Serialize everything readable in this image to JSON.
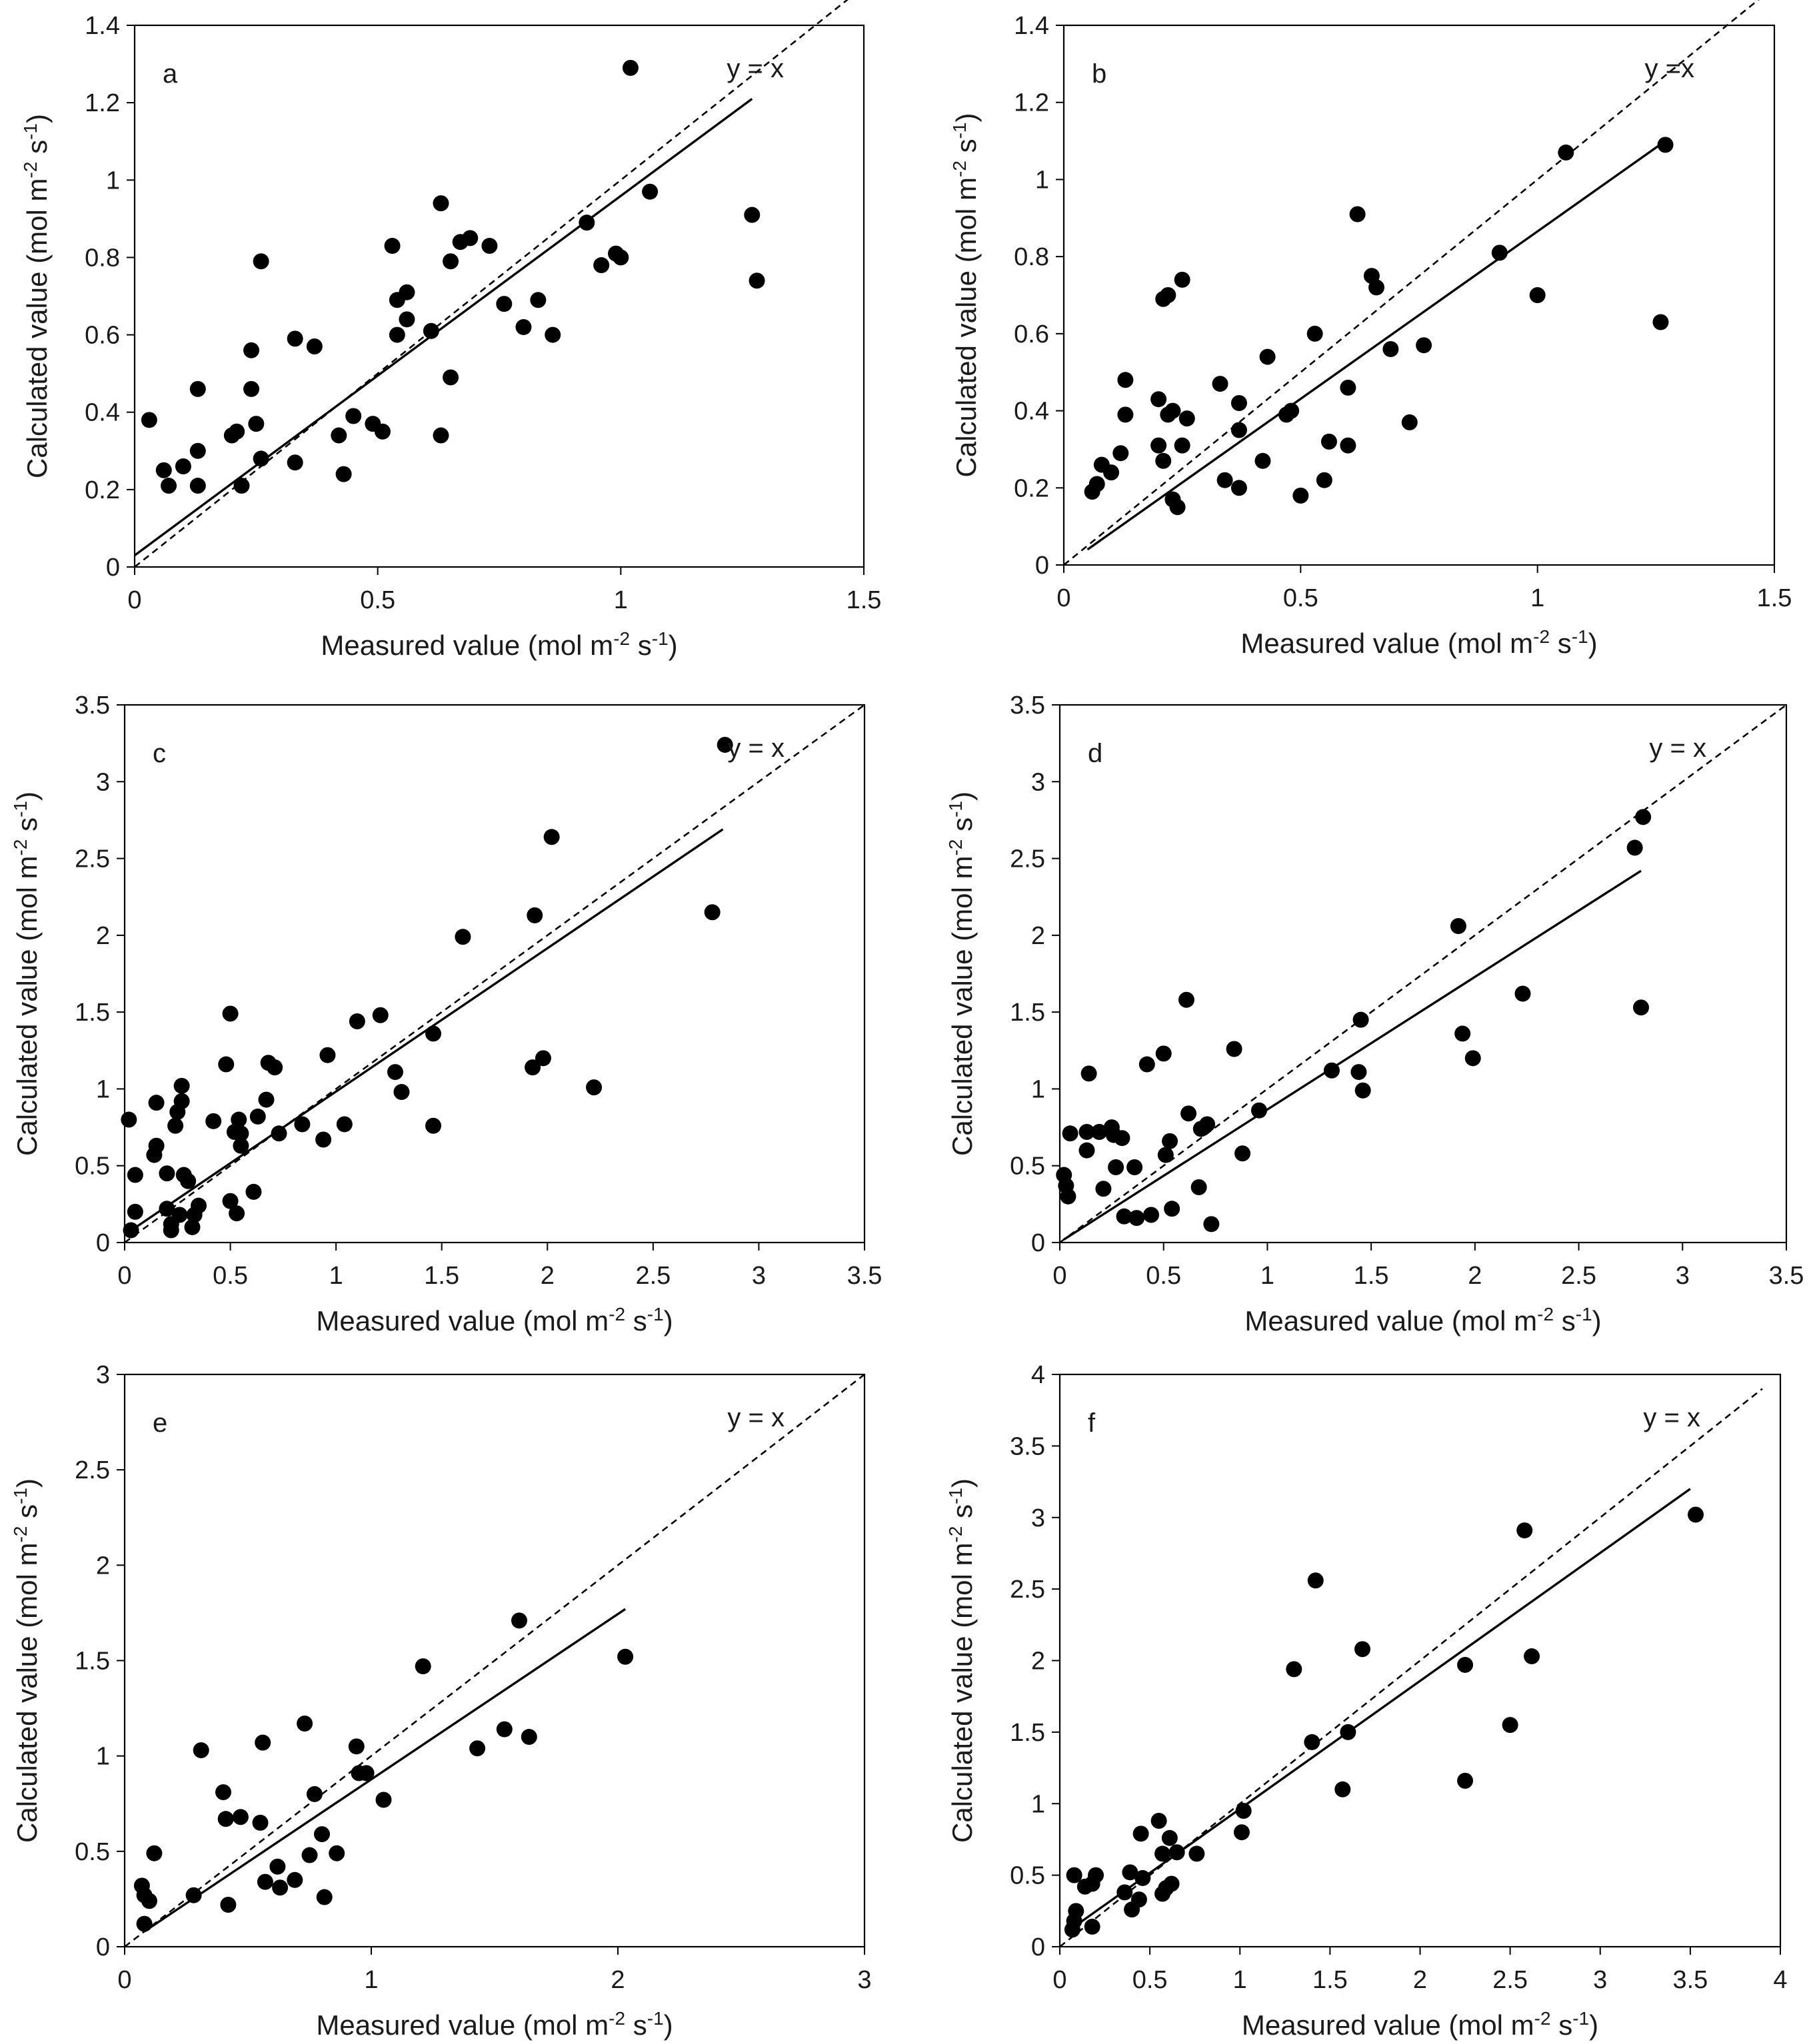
{
  "figure": {
    "xlabel_main": "Measured value (mol m",
    "xlabel_sup1": "-2",
    "xlabel_mid": " s",
    "xlabel_sup2": "-1",
    "xlabel_end": ")",
    "ylabel_main": "Calculated value (mol m",
    "ylabel_sup1": "-2",
    "ylabel_mid": " s",
    "ylabel_sup2": "-1",
    "ylabel_end": ")",
    "ink_color": "#000000"
  },
  "chart_data": [
    {
      "panel": "a",
      "type": "scatter",
      "ref_label": "y = x",
      "xlim": [
        0,
        1.5
      ],
      "ylim": [
        0,
        1.4
      ],
      "xticks": [
        0,
        0.5,
        1,
        1.5
      ],
      "xtick_labels": [
        "0",
        "0.5",
        "1",
        "1.5"
      ],
      "yticks": [
        0,
        0.2,
        0.4,
        0.6,
        0.8,
        1,
        1.2,
        1.4
      ],
      "ytick_labels": [
        "0",
        "0.2",
        "0.4",
        "0.6",
        "0.8",
        "1",
        "1.2",
        "1.4"
      ],
      "ref_line_end": 1.5,
      "fit_line": [
        [
          0,
          0.03
        ],
        [
          1.27,
          1.21
        ]
      ],
      "points": [
        [
          0.03,
          0.38
        ],
        [
          0.06,
          0.25
        ],
        [
          0.07,
          0.21
        ],
        [
          0.1,
          0.26
        ],
        [
          0.13,
          0.3
        ],
        [
          0.13,
          0.46
        ],
        [
          0.13,
          0.21
        ],
        [
          0.2,
          0.34
        ],
        [
          0.21,
          0.35
        ],
        [
          0.22,
          0.21
        ],
        [
          0.24,
          0.56
        ],
        [
          0.24,
          0.46
        ],
        [
          0.25,
          0.37
        ],
        [
          0.26,
          0.28
        ],
        [
          0.26,
          0.79
        ],
        [
          0.33,
          0.59
        ],
        [
          0.33,
          0.27
        ],
        [
          0.37,
          0.57
        ],
        [
          0.42,
          0.34
        ],
        [
          0.43,
          0.24
        ],
        [
          0.45,
          0.39
        ],
        [
          0.49,
          0.37
        ],
        [
          0.51,
          0.35
        ],
        [
          0.53,
          0.83
        ],
        [
          0.54,
          0.6
        ],
        [
          0.54,
          0.69
        ],
        [
          0.56,
          0.71
        ],
        [
          0.56,
          0.64
        ],
        [
          0.61,
          0.61
        ],
        [
          0.63,
          0.94
        ],
        [
          0.63,
          0.34
        ],
        [
          0.65,
          0.79
        ],
        [
          0.65,
          0.49
        ],
        [
          0.67,
          0.84
        ],
        [
          0.69,
          0.85
        ],
        [
          0.73,
          0.83
        ],
        [
          0.76,
          0.68
        ],
        [
          0.8,
          0.62
        ],
        [
          0.83,
          0.69
        ],
        [
          0.86,
          0.6
        ],
        [
          0.93,
          0.89
        ],
        [
          0.96,
          0.78
        ],
        [
          0.99,
          0.81
        ],
        [
          1.0,
          0.8
        ],
        [
          1.02,
          1.29
        ],
        [
          1.06,
          0.97
        ],
        [
          1.27,
          0.91
        ],
        [
          1.28,
          0.74
        ]
      ]
    },
    {
      "panel": "b",
      "type": "scatter",
      "ref_label": "y =x",
      "xlim": [
        0,
        1.5
      ],
      "ylim": [
        0,
        1.4
      ],
      "xticks": [
        0,
        0.5,
        1,
        1.5
      ],
      "xtick_labels": [
        "0",
        "0.5",
        "1",
        "1.5"
      ],
      "yticks": [
        0,
        0.2,
        0.4,
        0.6,
        0.8,
        1,
        1.2,
        1.4
      ],
      "ytick_labels": [
        "0",
        "0.2",
        "0.4",
        "0.6",
        "0.8",
        "1",
        "1.2",
        "1.4"
      ],
      "ref_line_end": 1.5,
      "fit_line": [
        [
          0.05,
          0.04
        ],
        [
          1.27,
          1.1
        ]
      ],
      "points": [
        [
          0.06,
          0.19
        ],
        [
          0.07,
          0.21
        ],
        [
          0.08,
          0.26
        ],
        [
          0.1,
          0.24
        ],
        [
          0.12,
          0.29
        ],
        [
          0.13,
          0.48
        ],
        [
          0.13,
          0.39
        ],
        [
          0.2,
          0.43
        ],
        [
          0.2,
          0.31
        ],
        [
          0.21,
          0.27
        ],
        [
          0.21,
          0.69
        ],
        [
          0.22,
          0.7
        ],
        [
          0.22,
          0.39
        ],
        [
          0.23,
          0.4
        ],
        [
          0.23,
          0.17
        ],
        [
          0.24,
          0.15
        ],
        [
          0.25,
          0.74
        ],
        [
          0.25,
          0.31
        ],
        [
          0.26,
          0.38
        ],
        [
          0.33,
          0.47
        ],
        [
          0.34,
          0.22
        ],
        [
          0.37,
          0.42
        ],
        [
          0.37,
          0.35
        ],
        [
          0.37,
          0.2
        ],
        [
          0.42,
          0.27
        ],
        [
          0.43,
          0.54
        ],
        [
          0.47,
          0.39
        ],
        [
          0.48,
          0.4
        ],
        [
          0.5,
          0.18
        ],
        [
          0.53,
          0.6
        ],
        [
          0.55,
          0.22
        ],
        [
          0.56,
          0.32
        ],
        [
          0.6,
          0.46
        ],
        [
          0.6,
          0.31
        ],
        [
          0.62,
          0.91
        ],
        [
          0.65,
          0.75
        ],
        [
          0.66,
          0.72
        ],
        [
          0.69,
          0.56
        ],
        [
          0.73,
          0.37
        ],
        [
          0.76,
          0.57
        ],
        [
          0.92,
          0.81
        ],
        [
          1.0,
          0.7
        ],
        [
          1.06,
          1.07
        ],
        [
          1.26,
          0.63
        ],
        [
          1.27,
          1.09
        ]
      ]
    },
    {
      "panel": "c",
      "type": "scatter",
      "ref_label": "y = x",
      "xlim": [
        0,
        3.5
      ],
      "ylim": [
        0,
        3.5
      ],
      "xticks": [
        0,
        0.5,
        1,
        1.5,
        2,
        2.5,
        3,
        3.5
      ],
      "xtick_labels": [
        "0",
        "0.5",
        "1",
        "1.5",
        "2",
        "2.5",
        "3",
        "3.5"
      ],
      "yticks": [
        0,
        0.5,
        1,
        1.5,
        2,
        2.5,
        3,
        3.5
      ],
      "ytick_labels": [
        "0",
        "0.5",
        "1",
        "1.5",
        "2",
        "2.5",
        "3",
        "3.5"
      ],
      "ref_line_end": 3.5,
      "fit_line": [
        [
          0,
          0.05
        ],
        [
          2.83,
          2.69
        ]
      ],
      "points": [
        [
          0.02,
          0.8
        ],
        [
          0.03,
          0.08
        ],
        [
          0.05,
          0.44
        ],
        [
          0.05,
          0.2
        ],
        [
          0.14,
          0.57
        ],
        [
          0.15,
          0.63
        ],
        [
          0.15,
          0.91
        ],
        [
          0.2,
          0.22
        ],
        [
          0.2,
          0.45
        ],
        [
          0.22,
          0.12
        ],
        [
          0.22,
          0.08
        ],
        [
          0.24,
          0.76
        ],
        [
          0.25,
          0.85
        ],
        [
          0.26,
          0.18
        ],
        [
          0.27,
          0.92
        ],
        [
          0.27,
          1.02
        ],
        [
          0.28,
          0.44
        ],
        [
          0.3,
          0.4
        ],
        [
          0.32,
          0.1
        ],
        [
          0.33,
          0.18
        ],
        [
          0.35,
          0.24
        ],
        [
          0.42,
          0.79
        ],
        [
          0.48,
          1.16
        ],
        [
          0.5,
          1.49
        ],
        [
          0.5,
          0.27
        ],
        [
          0.52,
          0.72
        ],
        [
          0.53,
          0.19
        ],
        [
          0.54,
          0.8
        ],
        [
          0.55,
          0.63
        ],
        [
          0.55,
          0.71
        ],
        [
          0.61,
          0.33
        ],
        [
          0.63,
          0.82
        ],
        [
          0.67,
          0.93
        ],
        [
          0.68,
          1.17
        ],
        [
          0.71,
          1.14
        ],
        [
          0.73,
          0.71
        ],
        [
          0.84,
          0.77
        ],
        [
          0.94,
          0.67
        ],
        [
          0.96,
          1.22
        ],
        [
          1.04,
          0.77
        ],
        [
          1.1,
          1.44
        ],
        [
          1.21,
          1.48
        ],
        [
          1.28,
          1.11
        ],
        [
          1.31,
          0.98
        ],
        [
          1.46,
          1.36
        ],
        [
          1.46,
          0.76
        ],
        [
          1.6,
          1.99
        ],
        [
          1.93,
          1.14
        ],
        [
          1.94,
          2.13
        ],
        [
          1.98,
          1.2
        ],
        [
          2.02,
          2.64
        ],
        [
          2.22,
          1.01
        ],
        [
          2.78,
          2.15
        ],
        [
          2.84,
          3.24
        ]
      ]
    },
    {
      "panel": "d",
      "type": "scatter",
      "ref_label": "y = x",
      "xlim": [
        0,
        3.5
      ],
      "ylim": [
        0,
        3.5
      ],
      "xticks": [
        0,
        0.5,
        1,
        1.5,
        2,
        2.5,
        3,
        3.5
      ],
      "xtick_labels": [
        "0",
        "0.5",
        "1",
        "1.5",
        "2",
        "2.5",
        "3",
        "3.5"
      ],
      "yticks": [
        0,
        0.5,
        1,
        1.5,
        2,
        2.5,
        3,
        3.5
      ],
      "ytick_labels": [
        "0",
        "0.5",
        "1",
        "1.5",
        "2",
        "2.5",
        "3",
        "3.5"
      ],
      "ref_line_end": 3.5,
      "fit_line": [
        [
          0.02,
          0.02
        ],
        [
          2.8,
          2.42
        ]
      ],
      "points": [
        [
          0.02,
          0.44
        ],
        [
          0.03,
          0.37
        ],
        [
          0.04,
          0.3
        ],
        [
          0.05,
          0.71
        ],
        [
          0.13,
          0.72
        ],
        [
          0.13,
          0.6
        ],
        [
          0.14,
          1.1
        ],
        [
          0.19,
          0.72
        ],
        [
          0.21,
          0.35
        ],
        [
          0.25,
          0.75
        ],
        [
          0.26,
          0.7
        ],
        [
          0.27,
          0.49
        ],
        [
          0.3,
          0.68
        ],
        [
          0.31,
          0.17
        ],
        [
          0.36,
          0.49
        ],
        [
          0.37,
          0.16
        ],
        [
          0.42,
          1.16
        ],
        [
          0.44,
          0.18
        ],
        [
          0.5,
          1.23
        ],
        [
          0.51,
          0.57
        ],
        [
          0.53,
          0.66
        ],
        [
          0.54,
          0.22
        ],
        [
          0.61,
          1.58
        ],
        [
          0.62,
          0.84
        ],
        [
          0.67,
          0.36
        ],
        [
          0.68,
          0.74
        ],
        [
          0.71,
          0.77
        ],
        [
          0.73,
          0.12
        ],
        [
          0.84,
          1.26
        ],
        [
          0.88,
          0.58
        ],
        [
          0.96,
          0.86
        ],
        [
          1.31,
          1.12
        ],
        [
          1.44,
          1.11
        ],
        [
          1.45,
          1.45
        ],
        [
          1.46,
          0.99
        ],
        [
          1.92,
          2.06
        ],
        [
          1.94,
          1.36
        ],
        [
          1.99,
          1.2
        ],
        [
          2.23,
          1.62
        ],
        [
          2.77,
          2.57
        ],
        [
          2.8,
          1.53
        ],
        [
          2.81,
          2.77
        ]
      ]
    },
    {
      "panel": "e",
      "type": "scatter",
      "ref_label": "y = x",
      "xlim": [
        0,
        3
      ],
      "ylim": [
        0,
        3
      ],
      "xticks": [
        0,
        1,
        2,
        3
      ],
      "xtick_labels": [
        "0",
        "1",
        "2",
        "3"
      ],
      "yticks": [
        0,
        0.5,
        1,
        1.5,
        2,
        2.5,
        3
      ],
      "ytick_labels": [
        "0",
        "0.5",
        "1",
        "1.5",
        "2",
        "2.5",
        "3"
      ],
      "ref_line_end": 3,
      "fit_line": [
        [
          0.08,
          0.08
        ],
        [
          2.03,
          1.77
        ]
      ],
      "points": [
        [
          0.07,
          0.32
        ],
        [
          0.08,
          0.27
        ],
        [
          0.08,
          0.12
        ],
        [
          0.1,
          0.24
        ],
        [
          0.12,
          0.49
        ],
        [
          0.28,
          0.27
        ],
        [
          0.31,
          1.03
        ],
        [
          0.4,
          0.81
        ],
        [
          0.41,
          0.67
        ],
        [
          0.42,
          0.22
        ],
        [
          0.47,
          0.68
        ],
        [
          0.55,
          0.65
        ],
        [
          0.56,
          1.07
        ],
        [
          0.57,
          0.34
        ],
        [
          0.62,
          0.42
        ],
        [
          0.63,
          0.31
        ],
        [
          0.69,
          0.35
        ],
        [
          0.73,
          1.17
        ],
        [
          0.75,
          0.48
        ],
        [
          0.77,
          0.8
        ],
        [
          0.8,
          0.59
        ],
        [
          0.81,
          0.26
        ],
        [
          0.86,
          0.49
        ],
        [
          0.94,
          1.05
        ],
        [
          0.95,
          0.91
        ],
        [
          0.98,
          0.91
        ],
        [
          1.05,
          0.77
        ],
        [
          1.21,
          1.47
        ],
        [
          1.43,
          1.04
        ],
        [
          1.54,
          1.14
        ],
        [
          1.6,
          1.71
        ],
        [
          1.64,
          1.1
        ],
        [
          2.03,
          1.52
        ]
      ]
    },
    {
      "panel": "f",
      "type": "scatter",
      "ref_label": "y = x",
      "xlim": [
        0,
        4
      ],
      "ylim": [
        0,
        4
      ],
      "xticks": [
        0,
        0.5,
        1,
        1.5,
        2,
        2.5,
        3,
        3.5,
        4
      ],
      "xtick_labels": [
        "0",
        "0.5",
        "1",
        "1.5",
        "2",
        "2.5",
        "3",
        "3.5",
        "4"
      ],
      "yticks": [
        0,
        0.5,
        1,
        1.5,
        2,
        2.5,
        3,
        3.5,
        4
      ],
      "ytick_labels": [
        "0",
        "0.5",
        "1",
        "1.5",
        "2",
        "2.5",
        "3",
        "3.5",
        "4"
      ],
      "ref_line_end": 3.9,
      "fit_line": [
        [
          0.08,
          0.14
        ],
        [
          3.5,
          3.2
        ]
      ],
      "points": [
        [
          0.07,
          0.12
        ],
        [
          0.08,
          0.18
        ],
        [
          0.08,
          0.5
        ],
        [
          0.09,
          0.25
        ],
        [
          0.14,
          0.42
        ],
        [
          0.18,
          0.44
        ],
        [
          0.18,
          0.14
        ],
        [
          0.2,
          0.5
        ],
        [
          0.36,
          0.38
        ],
        [
          0.39,
          0.52
        ],
        [
          0.4,
          0.26
        ],
        [
          0.44,
          0.33
        ],
        [
          0.45,
          0.79
        ],
        [
          0.46,
          0.48
        ],
        [
          0.55,
          0.88
        ],
        [
          0.57,
          0.37
        ],
        [
          0.57,
          0.65
        ],
        [
          0.59,
          0.41
        ],
        [
          0.61,
          0.76
        ],
        [
          0.62,
          0.44
        ],
        [
          0.65,
          0.66
        ],
        [
          0.76,
          0.65
        ],
        [
          1.01,
          0.8
        ],
        [
          1.02,
          0.95
        ],
        [
          1.3,
          1.94
        ],
        [
          1.4,
          1.43
        ],
        [
          1.42,
          2.56
        ],
        [
          1.57,
          1.1
        ],
        [
          1.6,
          1.5
        ],
        [
          1.68,
          2.08
        ],
        [
          2.25,
          1.97
        ],
        [
          2.25,
          1.16
        ],
        [
          2.5,
          1.55
        ],
        [
          2.58,
          2.91
        ],
        [
          2.62,
          2.03
        ],
        [
          3.53,
          3.02
        ]
      ]
    }
  ]
}
